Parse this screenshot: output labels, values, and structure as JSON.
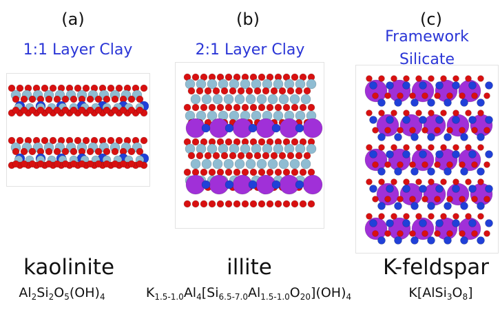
{
  "panels": [
    {
      "letter": "(a)",
      "class_lines": [
        "1:1 Layer Clay"
      ],
      "mineral": "kaolinite",
      "formula": [
        {
          "t": "Al"
        },
        {
          "s": "2"
        },
        {
          "t": "Si"
        },
        {
          "s": "2"
        },
        {
          "t": "O"
        },
        {
          "s": "5"
        },
        {
          "t": "(OH)"
        },
        {
          "s": "4"
        }
      ]
    },
    {
      "letter": "(b)",
      "class_lines": [
        "2:1 Layer Clay"
      ],
      "mineral": "illite",
      "formula": [
        {
          "t": "K"
        },
        {
          "s": "1.5-1.0"
        },
        {
          "t": "Al"
        },
        {
          "s": "4"
        },
        {
          "t": "[Si"
        },
        {
          "s": "6.5-7.0"
        },
        {
          "t": "Al"
        },
        {
          "s": "1.5-1.0"
        },
        {
          "t": "O"
        },
        {
          "s": "20"
        },
        {
          "t": "](OH)"
        },
        {
          "s": "4"
        }
      ]
    },
    {
      "letter": "(c)",
      "class_lines": [
        "Framework",
        "Silicate"
      ],
      "mineral": "K-feldspar",
      "formula": [
        {
          "t": "K[AlSi"
        },
        {
          "s": "3"
        },
        {
          "t": "O"
        },
        {
          "s": "8"
        },
        {
          "t": "]"
        }
      ]
    }
  ],
  "colors": {
    "label_blue": "#2a35d6",
    "oxygen": "#d81010",
    "silicon_aluminum": "#8fbcd2",
    "aluminum_dark": "#2040d8",
    "potassium": "#a030d8"
  }
}
